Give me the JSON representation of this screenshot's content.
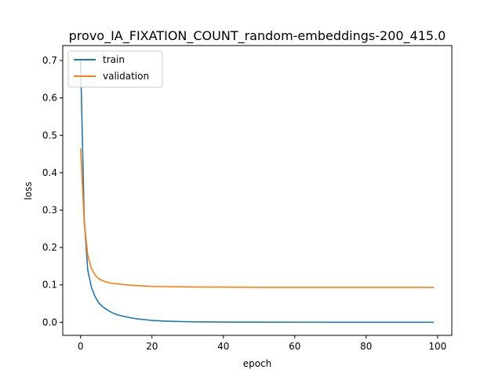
{
  "chart_data": {
    "type": "line",
    "title": "provo_IA_FIXATION_COUNT_random-embeddings-200_415.0",
    "xlabel": "epoch",
    "ylabel": "loss",
    "xlim": [
      -5,
      104
    ],
    "ylim": [
      -0.035,
      0.74
    ],
    "xticks": [
      0,
      20,
      40,
      60,
      80,
      100
    ],
    "yticks": [
      0.0,
      0.1,
      0.2,
      0.3,
      0.4,
      0.5,
      0.6,
      0.7
    ],
    "xtick_labels": [
      "0",
      "20",
      "40",
      "60",
      "80",
      "100"
    ],
    "ytick_labels": [
      "0.0",
      "0.1",
      "0.2",
      "0.3",
      "0.4",
      "0.5",
      "0.6",
      "0.7"
    ],
    "legend_position": "upper left",
    "grid": false,
    "series": [
      {
        "name": "train",
        "color": "#1f77b4",
        "x": [
          0,
          1,
          2,
          3,
          4,
          5,
          6,
          7,
          8,
          9,
          10,
          12,
          14,
          16,
          18,
          20,
          23,
          26,
          30,
          35,
          40,
          50,
          60,
          70,
          80,
          90,
          99
        ],
        "y": [
          0.7,
          0.28,
          0.14,
          0.095,
          0.07,
          0.053,
          0.043,
          0.036,
          0.03,
          0.025,
          0.021,
          0.016,
          0.012,
          0.009,
          0.007,
          0.005,
          0.0035,
          0.0025,
          0.0015,
          0.001,
          0.0006,
          0.0003,
          0.0002,
          0.0001,
          0.0001,
          0.0001,
          0.0001
        ]
      },
      {
        "name": "validation",
        "color": "#ff7f0e",
        "x": [
          0,
          1,
          2,
          3,
          4,
          5,
          6,
          7,
          8,
          9,
          10,
          12,
          14,
          16,
          18,
          20,
          23,
          26,
          30,
          35,
          40,
          50,
          60,
          70,
          80,
          90,
          99
        ],
        "y": [
          0.465,
          0.27,
          0.18,
          0.145,
          0.127,
          0.117,
          0.112,
          0.108,
          0.106,
          0.104,
          0.103,
          0.101,
          0.099,
          0.098,
          0.097,
          0.096,
          0.0955,
          0.095,
          0.0945,
          0.094,
          0.094,
          0.0935,
          0.0935,
          0.0935,
          0.0935,
          0.0935,
          0.0935
        ]
      }
    ]
  }
}
